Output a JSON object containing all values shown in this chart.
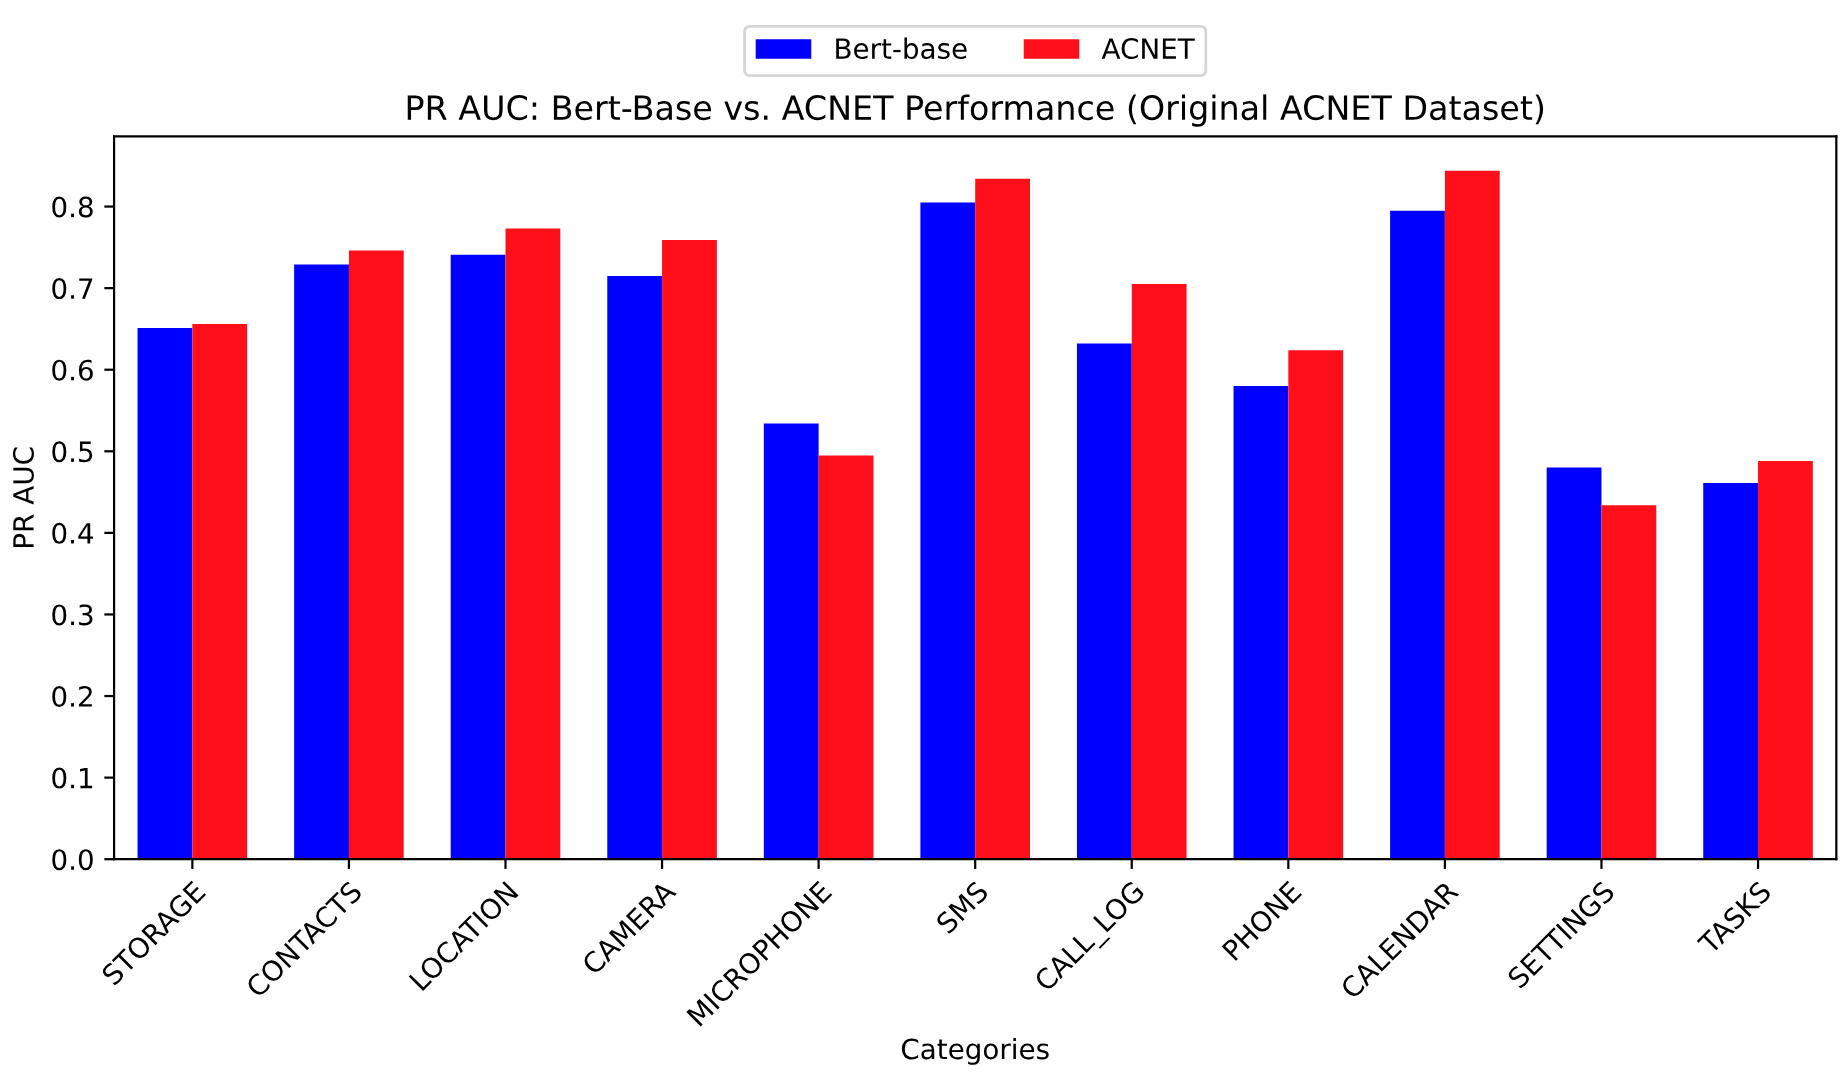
{
  "chart_data": {
    "type": "bar",
    "title": "PR AUC: Bert-Base vs. ACNET Performance (Original ACNET Dataset)",
    "xlabel": "Categories",
    "ylabel": "PR AUC",
    "categories": [
      "STORAGE",
      "CONTACTS",
      "LOCATION",
      "CAMERA",
      "MICROPHONE",
      "SMS",
      "CALL_LOG",
      "PHONE",
      "CALENDAR",
      "SETTINGS",
      "TASKS"
    ],
    "series": [
      {
        "name": "Bert-base",
        "color": "#0000ff",
        "values": [
          0.651,
          0.729,
          0.741,
          0.715,
          0.534,
          0.805,
          0.632,
          0.58,
          0.795,
          0.48,
          0.461
        ]
      },
      {
        "name": "ACNET",
        "color": "#ff0f1a",
        "values": [
          0.656,
          0.746,
          0.773,
          0.759,
          0.495,
          0.834,
          0.705,
          0.624,
          0.844,
          0.434,
          0.488
        ]
      }
    ],
    "ylim": [
      0,
      0.886
    ],
    "yticks": [
      {
        "value": 0,
        "label": "0.0"
      },
      0.1,
      0.2,
      0.3,
      0.4,
      0.5,
      0.6,
      0.7,
      0.8
    ],
    "grid": false,
    "legend": "top"
  }
}
